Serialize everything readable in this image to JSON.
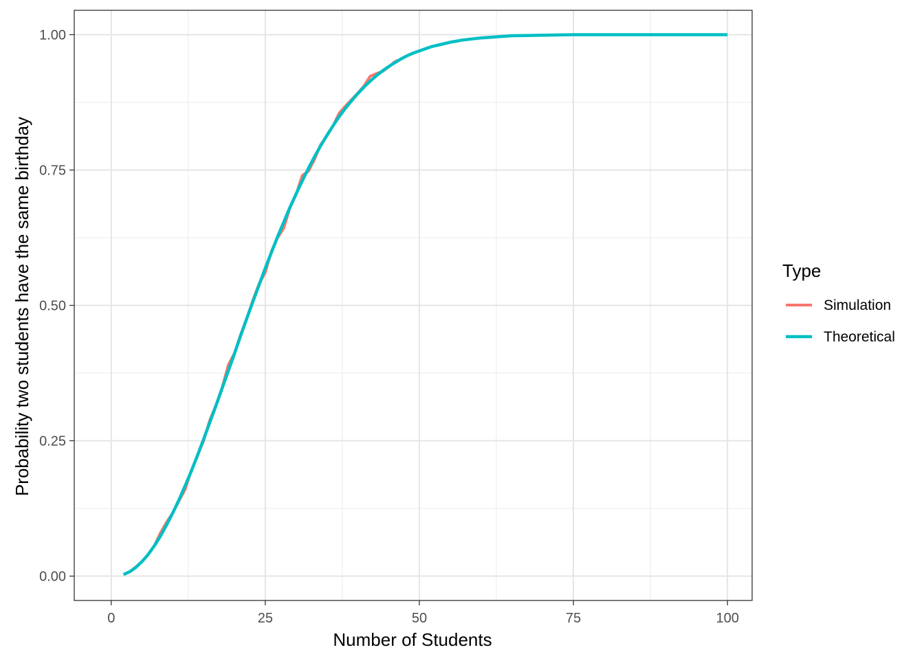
{
  "chart_data": {
    "type": "line",
    "xlabel": "Number of Students",
    "ylabel": "Probability two students have the same birthday",
    "xlim": [
      -6,
      104
    ],
    "ylim": [
      -0.045,
      1.045
    ],
    "x_ticks": [
      0,
      25,
      50,
      75,
      100
    ],
    "x_tick_labels": [
      "0",
      "25",
      "50",
      "75",
      "100"
    ],
    "y_ticks": [
      0,
      0.25,
      0.5,
      0.75,
      1.0
    ],
    "y_tick_labels": [
      "0.00",
      "0.25",
      "0.50",
      "0.75",
      "1.00"
    ],
    "grid": true,
    "legend": {
      "title": "Type",
      "placement": "right",
      "entries": [
        "Simulation",
        "Theoretical"
      ]
    },
    "series": [
      {
        "name": "Simulation",
        "color": "#F8766D",
        "x": [
          2,
          3,
          4,
          5,
          6,
          7,
          8,
          9,
          10,
          11,
          12,
          13,
          14,
          15,
          16,
          17,
          18,
          19,
          20,
          21,
          22,
          23,
          24,
          25,
          26,
          27,
          28,
          29,
          30,
          31,
          32,
          33,
          34,
          35,
          36,
          37,
          38,
          39,
          40,
          41,
          42,
          43,
          44,
          45,
          46,
          47,
          48,
          49,
          50,
          52,
          55,
          57,
          60,
          65,
          70,
          75,
          80,
          85,
          90,
          95,
          100
        ],
        "y": [
          0.003,
          0.008,
          0.017,
          0.027,
          0.04,
          0.056,
          0.08,
          0.1,
          0.117,
          0.139,
          0.16,
          0.195,
          0.223,
          0.25,
          0.288,
          0.316,
          0.348,
          0.39,
          0.412,
          0.446,
          0.476,
          0.51,
          0.54,
          0.561,
          0.6,
          0.625,
          0.643,
          0.68,
          0.705,
          0.74,
          0.748,
          0.77,
          0.797,
          0.813,
          0.832,
          0.855,
          0.868,
          0.88,
          0.892,
          0.905,
          0.923,
          0.928,
          0.932,
          0.94,
          0.95,
          0.955,
          0.961,
          0.966,
          0.97,
          0.978,
          0.986,
          0.99,
          0.994,
          0.998,
          0.999,
          1.0,
          1.0,
          1.0,
          1.0,
          1.0,
          1.0
        ]
      },
      {
        "name": "Theoretical",
        "color": "#00BFC4",
        "x": [
          2,
          3,
          4,
          5,
          6,
          7,
          8,
          9,
          10,
          11,
          12,
          13,
          14,
          15,
          16,
          17,
          18,
          19,
          20,
          21,
          22,
          23,
          24,
          25,
          26,
          27,
          28,
          29,
          30,
          31,
          32,
          33,
          34,
          35,
          36,
          37,
          38,
          39,
          40,
          41,
          42,
          43,
          44,
          45,
          46,
          47,
          48,
          49,
          50,
          52,
          55,
          57,
          60,
          65,
          70,
          75,
          80,
          85,
          90,
          95,
          100
        ],
        "y": [
          0.003,
          0.008,
          0.016,
          0.027,
          0.04,
          0.056,
          0.074,
          0.095,
          0.117,
          0.141,
          0.167,
          0.194,
          0.223,
          0.253,
          0.284,
          0.315,
          0.347,
          0.379,
          0.411,
          0.444,
          0.476,
          0.507,
          0.538,
          0.569,
          0.598,
          0.627,
          0.654,
          0.681,
          0.706,
          0.73,
          0.753,
          0.775,
          0.795,
          0.814,
          0.832,
          0.849,
          0.864,
          0.878,
          0.891,
          0.903,
          0.914,
          0.924,
          0.933,
          0.941,
          0.948,
          0.955,
          0.961,
          0.966,
          0.97,
          0.978,
          0.986,
          0.99,
          0.994,
          0.998,
          0.999,
          1.0,
          1.0,
          1.0,
          1.0,
          1.0,
          1.0
        ]
      }
    ]
  }
}
